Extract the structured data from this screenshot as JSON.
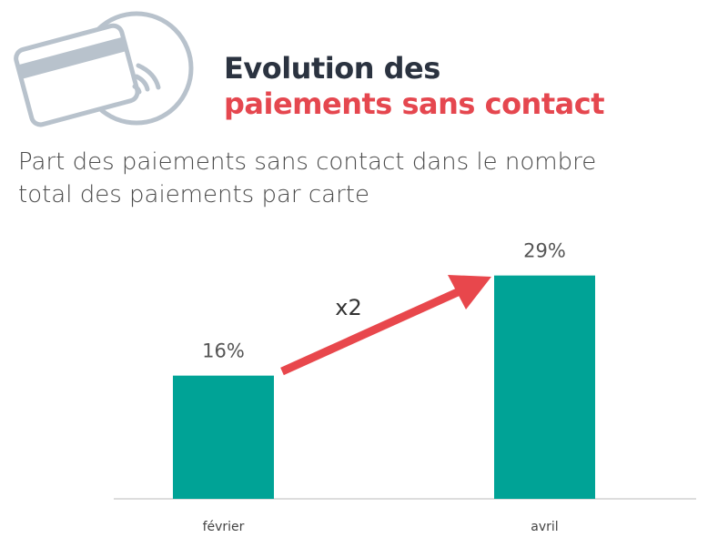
{
  "header": {
    "title_line1": "Evolution des",
    "title_line2": "paiements sans contact",
    "icon": "contactless-card-icon"
  },
  "subtitle_line1": "Part des paiements sans contact dans le nombre",
  "subtitle_line2": "total des paiements par carte",
  "colors": {
    "bar": "#00a396",
    "arrow": "#e8474c",
    "title_dark": "#2b3340",
    "title_red": "#e5474f",
    "icon": "#b8c2cc"
  },
  "chart_data": {
    "type": "bar",
    "categories": [
      "février",
      "avril"
    ],
    "values": [
      16,
      29
    ],
    "data_labels": [
      "16%",
      "29%"
    ],
    "annotation": "x2",
    "grid": false
  }
}
